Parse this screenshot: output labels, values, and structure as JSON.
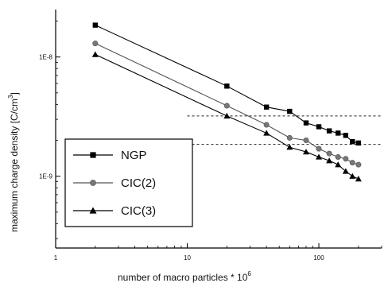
{
  "chart_data": {
    "type": "line",
    "xlabel": "number of macro particles * 10",
    "xlabel_superscript": "6",
    "ylabel": "maximum charge density [C/cm",
    "ylabel_superscript": "3",
    "ylabel_suffix": "]",
    "x_scale": "log",
    "y_scale": "log",
    "xlim": [
      1,
      300
    ],
    "ylim": [
      2.5e-10,
      2.5e-08
    ],
    "x_ticks": [
      {
        "value": 1,
        "label": "1"
      },
      {
        "value": 10,
        "label": "10"
      },
      {
        "value": 100,
        "label": "100"
      }
    ],
    "y_ticks": [
      {
        "value": 1e-08,
        "label": "1E-8"
      },
      {
        "value": 1e-09,
        "label": "1E-9"
      }
    ],
    "grid": false,
    "legend_position": "bottom-left",
    "reference_lines": [
      {
        "y": 3.2e-09,
        "x_start": 10,
        "style": "dashed"
      },
      {
        "y": 1.85e-09,
        "x_start": 10,
        "style": "dashed"
      }
    ],
    "series": [
      {
        "name": "NGP",
        "marker": "square",
        "x": [
          2,
          20,
          40,
          60,
          80,
          100,
          120,
          140,
          160,
          180,
          200
        ],
        "y": [
          1.85e-08,
          5.7e-09,
          3.8e-09,
          3.5e-09,
          2.8e-09,
          2.6e-09,
          2.4e-09,
          2.3e-09,
          2.2e-09,
          1.95e-09,
          1.9e-09
        ]
      },
      {
        "name": "CIC(2)",
        "marker": "circle",
        "x": [
          2,
          20,
          40,
          60,
          80,
          100,
          120,
          140,
          160,
          180,
          200
        ],
        "y": [
          1.3e-08,
          3.9e-09,
          2.7e-09,
          2.1e-09,
          2e-09,
          1.7e-09,
          1.55e-09,
          1.45e-09,
          1.4e-09,
          1.3e-09,
          1.25e-09
        ]
      },
      {
        "name": "CIC(3)",
        "marker": "triangle",
        "x": [
          2,
          20,
          40,
          60,
          80,
          100,
          120,
          140,
          160,
          180,
          200
        ],
        "y": [
          1.05e-08,
          3.2e-09,
          2.3e-09,
          1.75e-09,
          1.6e-09,
          1.45e-09,
          1.35e-09,
          1.25e-09,
          1.1e-09,
          1e-09,
          9.5e-10
        ]
      }
    ]
  }
}
